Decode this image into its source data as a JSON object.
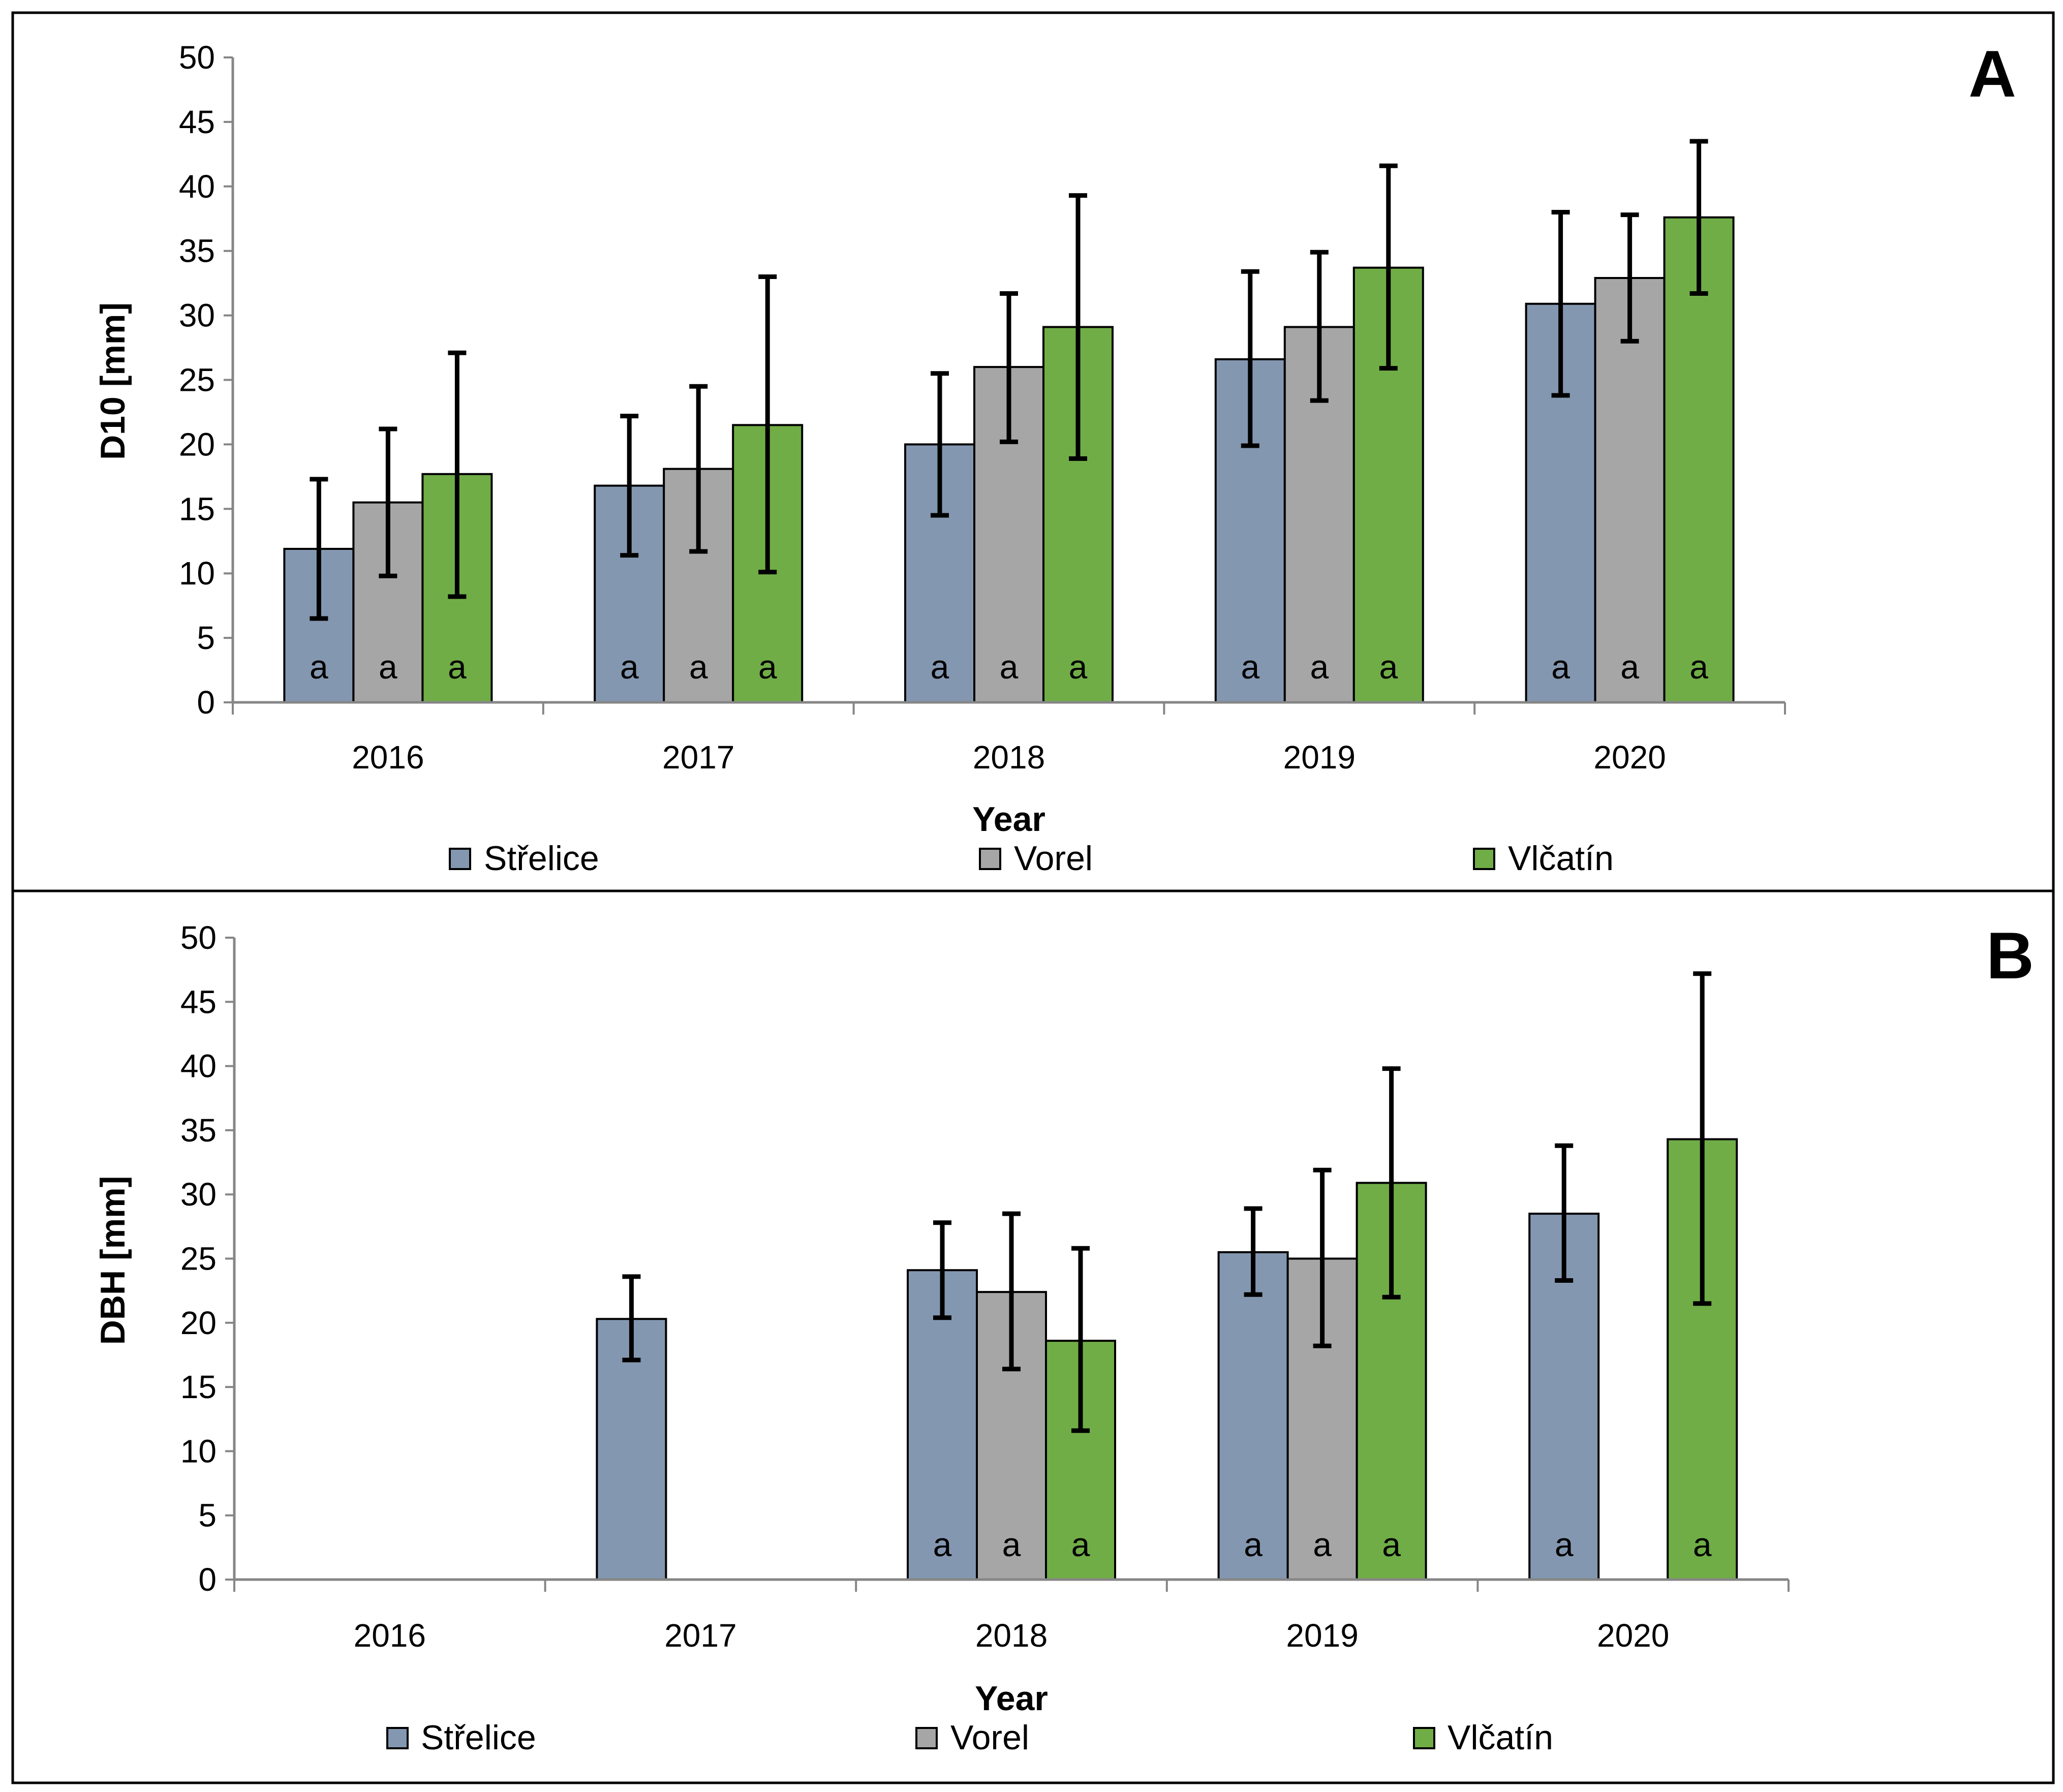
{
  "colors": {
    "Střelice": "#8497b0",
    "Vorel": "#a6a6a6",
    "Vlčatín": "#70ad47",
    "axis": "#868686",
    "errorbar": "#000000",
    "frame": "#000000"
  },
  "chart_data": [
    {
      "type": "bar",
      "panel_label": "A",
      "ylabel": "D10  [mm]",
      "xlabel": "Year",
      "ylim": [
        0,
        50
      ],
      "ytick_step": 5,
      "yticks": [
        "0",
        "5",
        "10",
        "15",
        "20",
        "25",
        "30",
        "35",
        "40",
        "45",
        "50"
      ],
      "categories": [
        "2016",
        "2017",
        "2018",
        "2019",
        "2020"
      ],
      "legend": [
        "Střelice",
        "Vorel",
        "Vlčatín"
      ],
      "legend_position": "bottom",
      "series": [
        {
          "name": "Střelice",
          "values": [
            11.9,
            16.8,
            20.0,
            26.6,
            30.9
          ],
          "err_low": [
            6.5,
            11.4,
            14.5,
            19.9,
            23.8
          ],
          "err_high": [
            17.3,
            22.2,
            25.5,
            33.4,
            38.0
          ],
          "labels": [
            "a",
            "a",
            "a",
            "a",
            "a"
          ]
        },
        {
          "name": "Vorel",
          "values": [
            15.5,
            18.1,
            26.0,
            29.1,
            32.9
          ],
          "err_low": [
            9.8,
            11.7,
            20.2,
            23.4,
            28.0
          ],
          "err_high": [
            21.2,
            24.5,
            31.7,
            34.9,
            37.8
          ],
          "labels": [
            "a",
            "a",
            "a",
            "a",
            "a"
          ]
        },
        {
          "name": "Vlčatín",
          "values": [
            17.7,
            21.5,
            29.1,
            33.7,
            37.6
          ],
          "err_low": [
            8.2,
            10.1,
            18.9,
            25.9,
            31.7
          ],
          "err_high": [
            27.1,
            33.0,
            39.3,
            41.6,
            43.5
          ],
          "labels": [
            "a",
            "a",
            "a",
            "a",
            "a"
          ]
        }
      ]
    },
    {
      "type": "bar",
      "panel_label": "B",
      "ylabel": "DBH  [mm]",
      "xlabel": "Year",
      "ylim": [
        0,
        50
      ],
      "ytick_step": 5,
      "yticks": [
        "0",
        "5",
        "10",
        "15",
        "20",
        "25",
        "30",
        "35",
        "40",
        "45",
        "50"
      ],
      "categories": [
        "2016",
        "2017",
        "2018",
        "2019",
        "2020"
      ],
      "legend": [
        "Střelice",
        "Vorel",
        "Vlčatín"
      ],
      "legend_position": "bottom",
      "series": [
        {
          "name": "Střelice",
          "values": [
            null,
            20.3,
            24.1,
            25.5,
            28.5
          ],
          "err_low": [
            null,
            17.1,
            20.4,
            22.2,
            23.3
          ],
          "err_high": [
            null,
            23.6,
            27.8,
            28.9,
            33.8
          ],
          "labels": [
            null,
            null,
            "a",
            "a",
            "a"
          ]
        },
        {
          "name": "Vorel",
          "values": [
            null,
            null,
            22.4,
            25.0,
            null
          ],
          "err_low": [
            null,
            null,
            16.4,
            18.2,
            null
          ],
          "err_high": [
            null,
            null,
            28.5,
            31.9,
            null
          ],
          "labels": [
            null,
            null,
            "a",
            "a",
            null
          ]
        },
        {
          "name": "Vlčatín",
          "values": [
            null,
            null,
            18.6,
            30.9,
            34.3
          ],
          "err_low": [
            null,
            null,
            11.6,
            22.0,
            21.5
          ],
          "err_high": [
            null,
            null,
            25.8,
            39.8,
            47.2
          ],
          "labels": [
            null,
            null,
            "a",
            "a",
            "a"
          ]
        }
      ]
    }
  ]
}
